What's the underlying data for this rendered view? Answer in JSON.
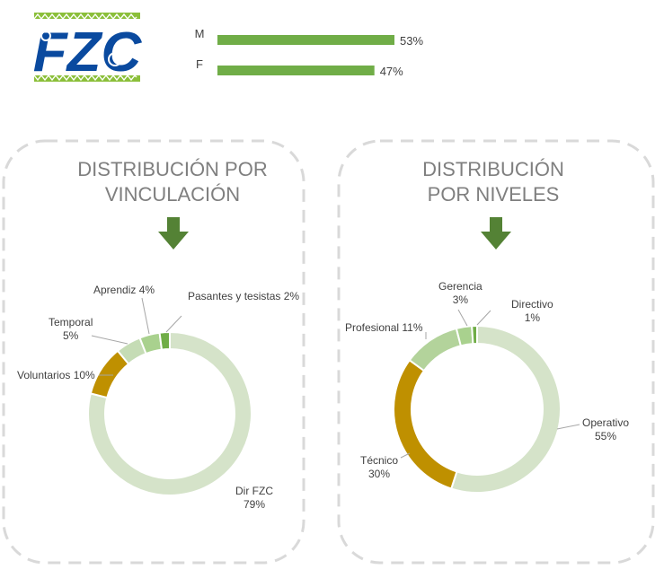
{
  "logo": {
    "text": "FZC",
    "brand_blue": "#0a4a9f",
    "brand_green": "#8bbf3a"
  },
  "gender": {
    "type": "bar",
    "categories": [
      "M",
      "F"
    ],
    "values": [
      53,
      47
    ],
    "value_labels": [
      "53%",
      "47%"
    ],
    "bar_color": "#70ad47"
  },
  "panels": [
    {
      "title_lines": [
        "DISTRIBUCIÓN POR",
        "VINCULACIÓN"
      ]
    },
    {
      "title_lines": [
        "DISTRIBUCIÓN",
        "POR NIVELES"
      ]
    }
  ],
  "colors": {
    "title": "#7f7f7f",
    "arrow": "#548235",
    "dash_border": "#d9d9d9",
    "label": "#404040"
  },
  "chart_data": [
    {
      "type": "pie",
      "title": "",
      "categories": [
        "Dir FZC",
        "Voluntarios",
        "Temporal",
        "Aprendiz",
        "Pasantes y tesistas"
      ],
      "values": [
        79,
        10,
        5,
        4,
        2
      ],
      "label_lines": [
        [
          "Dir FZC",
          "79%"
        ],
        [
          "Voluntarios 10%"
        ],
        [
          "Temporal",
          "5%"
        ],
        [
          "Aprendiz 4%"
        ],
        [
          "Pasantes y tesistas 2%"
        ]
      ],
      "colors": [
        "#d5e3c9",
        "#bf9000",
        "#c5dcb5",
        "#a9d18e",
        "#70ad47"
      ]
    },
    {
      "type": "pie",
      "title": "",
      "categories": [
        "Operativo",
        "Técnico",
        "Profesional",
        "Gerencia",
        "Directivo"
      ],
      "values": [
        55,
        30,
        11,
        3,
        1
      ],
      "label_lines": [
        [
          "Operativo",
          "55%"
        ],
        [
          "Técnico",
          "30%"
        ],
        [
          "Profesional 11%"
        ],
        [
          "Gerencia",
          "3%"
        ],
        [
          "Directivo",
          "1%"
        ]
      ],
      "colors": [
        "#d5e3c9",
        "#bf9000",
        "#b3d39b",
        "#a9d18e",
        "#70ad47"
      ]
    }
  ]
}
